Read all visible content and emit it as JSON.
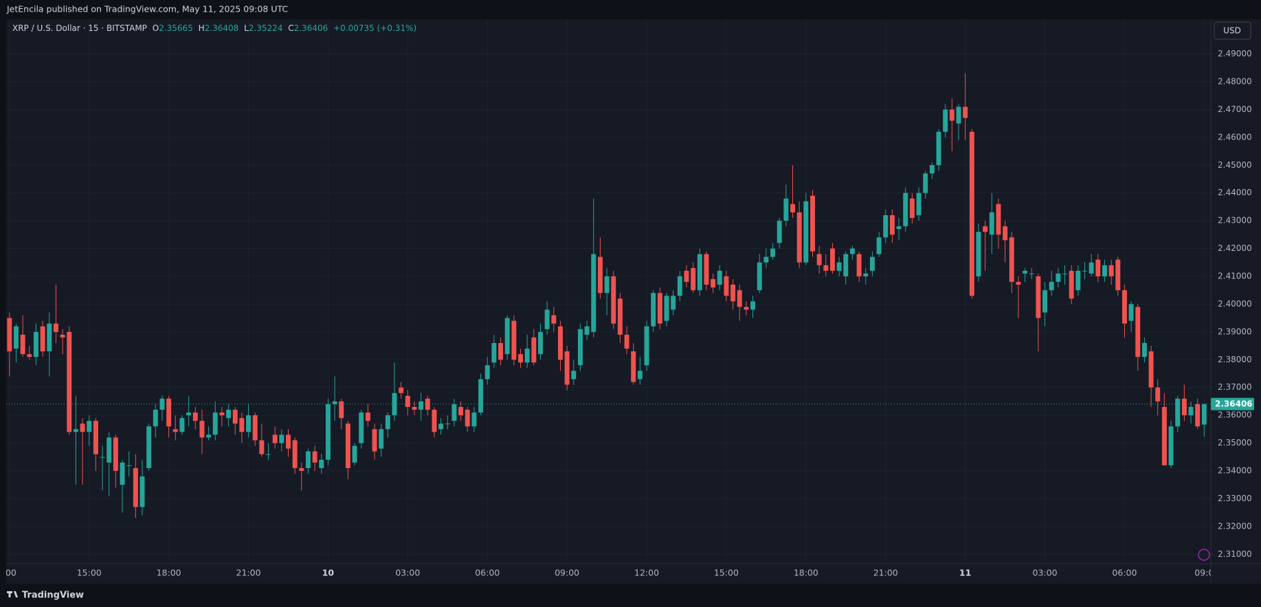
{
  "header": {
    "published": "JetEncila published on TradingView.com, May 11, 2025 09:08 UTC"
  },
  "footer": {
    "brand": "TradingView"
  },
  "currency_button": "USD",
  "legend": {
    "symbol": "XRP / U.S. Dollar · 15 · BITSTAMP",
    "open_label": "O",
    "open": 2.35665,
    "high_label": "H",
    "high": 2.36408,
    "low_label": "L",
    "low": 2.35224,
    "close_label": "C",
    "close": 2.36406,
    "change": "+0.00735 (+0.31%)"
  },
  "chart_data": {
    "type": "candlestick",
    "up_color": "#26a69a",
    "down_color": "#ef5350",
    "grid": true,
    "current_price": 2.36406,
    "xlim": [
      -0.5,
      181
    ],
    "xticks": [
      {
        "value": 0,
        "label": ":00"
      },
      {
        "value": 12,
        "label": "15:00"
      },
      {
        "value": 24,
        "label": "18:00"
      },
      {
        "value": 36,
        "label": "21:00"
      },
      {
        "value": 48,
        "label": "10"
      },
      {
        "value": 60,
        "label": "03:00"
      },
      {
        "value": 72,
        "label": "06:00"
      },
      {
        "value": 84,
        "label": "09:00"
      },
      {
        "value": 96,
        "label": "12:00"
      },
      {
        "value": 108,
        "label": "15:00"
      },
      {
        "value": 120,
        "label": "18:00"
      },
      {
        "value": 132,
        "label": "21:00"
      },
      {
        "value": 144,
        "label": "11"
      },
      {
        "value": 156,
        "label": "03:00"
      },
      {
        "value": 168,
        "label": "06:00"
      },
      {
        "value": 180,
        "label": "09:0"
      }
    ],
    "ylim": [
      2.3066,
      2.5025
    ],
    "yticks": [
      {
        "value": 2.31,
        "label": "2.31000"
      },
      {
        "value": 2.32,
        "label": "2.32000"
      },
      {
        "value": 2.33,
        "label": "2.33000"
      },
      {
        "value": 2.34,
        "label": "2.34000"
      },
      {
        "value": 2.35,
        "label": "2.35000"
      },
      {
        "value": 2.36,
        "label": "2.36000"
      },
      {
        "value": 2.37,
        "label": "2.37000"
      },
      {
        "value": 2.38,
        "label": "2.38000"
      },
      {
        "value": 2.39,
        "label": "2.39000"
      },
      {
        "value": 2.4,
        "label": "2.40000"
      },
      {
        "value": 2.41,
        "label": "2.41000"
      },
      {
        "value": 2.42,
        "label": "2.42000"
      },
      {
        "value": 2.43,
        "label": "2.43000"
      },
      {
        "value": 2.44,
        "label": "2.44000"
      },
      {
        "value": 2.45,
        "label": "2.45000"
      },
      {
        "value": 2.46,
        "label": "2.46000"
      },
      {
        "value": 2.47,
        "label": "2.47000"
      },
      {
        "value": 2.48,
        "label": "2.48000"
      },
      {
        "value": 2.49,
        "label": "2.49000"
      }
    ],
    "ohlc": [
      [
        2.395,
        2.397,
        2.374,
        2.383
      ],
      [
        2.384,
        2.393,
        2.379,
        2.392
      ],
      [
        2.389,
        2.396,
        2.381,
        2.382
      ],
      [
        2.382,
        2.385,
        2.38,
        2.381
      ],
      [
        2.381,
        2.393,
        2.378,
        2.39
      ],
      [
        2.392,
        2.394,
        2.381,
        2.383
      ],
      [
        2.383,
        2.397,
        2.374,
        2.393
      ],
      [
        2.393,
        2.407,
        2.386,
        2.39
      ],
      [
        2.389,
        2.391,
        2.382,
        2.388
      ],
      [
        2.39,
        2.392,
        2.353,
        2.354
      ],
      [
        2.354,
        2.367,
        2.335,
        2.355
      ],
      [
        2.357,
        2.359,
        2.335,
        2.354
      ],
      [
        2.354,
        2.36,
        2.349,
        2.358
      ],
      [
        2.358,
        2.359,
        2.34,
        2.346
      ],
      [
        2.345,
        2.349,
        2.333,
        2.345
      ],
      [
        2.343,
        2.354,
        2.331,
        2.352
      ],
      [
        2.352,
        2.353,
        2.334,
        2.34
      ],
      [
        2.335,
        2.344,
        2.325,
        2.343
      ],
      [
        2.342,
        2.347,
        2.338,
        2.342
      ],
      [
        2.341,
        2.346,
        2.323,
        2.327
      ],
      [
        2.327,
        2.344,
        2.324,
        2.338
      ],
      [
        2.341,
        2.357,
        2.34,
        2.356
      ],
      [
        2.356,
        2.364,
        2.352,
        2.362
      ],
      [
        2.362,
        2.367,
        2.358,
        2.366
      ],
      [
        2.366,
        2.367,
        2.352,
        2.356
      ],
      [
        2.355,
        2.36,
        2.351,
        2.354
      ],
      [
        2.354,
        2.36,
        2.353,
        2.359
      ],
      [
        2.36,
        2.367,
        2.356,
        2.361
      ],
      [
        2.361,
        2.363,
        2.355,
        2.358
      ],
      [
        2.358,
        2.362,
        2.346,
        2.352
      ],
      [
        2.352,
        2.356,
        2.351,
        2.353
      ],
      [
        2.353,
        2.365,
        2.351,
        2.361
      ],
      [
        2.361,
        2.363,
        2.356,
        2.36
      ],
      [
        2.359,
        2.364,
        2.356,
        2.362
      ],
      [
        2.362,
        2.363,
        2.353,
        2.357
      ],
      [
        2.359,
        2.361,
        2.35,
        2.354
      ],
      [
        2.354,
        2.364,
        2.352,
        2.36
      ],
      [
        2.36,
        2.361,
        2.349,
        2.351
      ],
      [
        2.351,
        2.357,
        2.345,
        2.346
      ],
      [
        2.346,
        2.35,
        2.344,
        2.346
      ],
      [
        2.353,
        2.356,
        2.348,
        2.35
      ],
      [
        2.35,
        2.355,
        2.347,
        2.353
      ],
      [
        2.353,
        2.355,
        2.345,
        2.348
      ],
      [
        2.351,
        2.352,
        2.339,
        2.341
      ],
      [
        2.341,
        2.343,
        2.333,
        2.34
      ],
      [
        2.341,
        2.348,
        2.339,
        2.347
      ],
      [
        2.347,
        2.349,
        2.34,
        2.343
      ],
      [
        2.341,
        2.346,
        2.339,
        2.344
      ],
      [
        2.344,
        2.366,
        2.342,
        2.364
      ],
      [
        2.364,
        2.374,
        2.358,
        2.365
      ],
      [
        2.365,
        2.366,
        2.355,
        2.359
      ],
      [
        2.357,
        2.358,
        2.337,
        2.341
      ],
      [
        2.343,
        2.35,
        2.342,
        2.349
      ],
      [
        2.35,
        2.362,
        2.348,
        2.361
      ],
      [
        2.361,
        2.364,
        2.356,
        2.358
      ],
      [
        2.355,
        2.357,
        2.344,
        2.347
      ],
      [
        2.348,
        2.357,
        2.345,
        2.355
      ],
      [
        2.355,
        2.361,
        2.352,
        2.36
      ],
      [
        2.36,
        2.379,
        2.358,
        2.368
      ],
      [
        2.37,
        2.372,
        2.366,
        2.368
      ],
      [
        2.367,
        2.369,
        2.36,
        2.363
      ],
      [
        2.363,
        2.365,
        2.36,
        2.362
      ],
      [
        2.362,
        2.368,
        2.358,
        2.365
      ],
      [
        2.366,
        2.367,
        2.36,
        2.362
      ],
      [
        2.362,
        2.363,
        2.352,
        2.354
      ],
      [
        2.355,
        2.359,
        2.353,
        2.357
      ],
      [
        2.357,
        2.36,
        2.355,
        2.357
      ],
      [
        2.358,
        2.366,
        2.356,
        2.364
      ],
      [
        2.363,
        2.365,
        2.358,
        2.36
      ],
      [
        2.362,
        2.363,
        2.354,
        2.356
      ],
      [
        2.356,
        2.363,
        2.354,
        2.361
      ],
      [
        2.361,
        2.375,
        2.36,
        2.373
      ],
      [
        2.373,
        2.381,
        2.371,
        2.378
      ],
      [
        2.379,
        2.389,
        2.377,
        2.386
      ],
      [
        2.386,
        2.388,
        2.378,
        2.38
      ],
      [
        2.382,
        2.396,
        2.38,
        2.395
      ],
      [
        2.394,
        2.396,
        2.378,
        2.38
      ],
      [
        2.382,
        2.384,
        2.377,
        2.379
      ],
      [
        2.379,
        2.389,
        2.377,
        2.384
      ],
      [
        2.388,
        2.391,
        2.378,
        2.379
      ],
      [
        2.382,
        2.393,
        2.38,
        2.39
      ],
      [
        2.391,
        2.401,
        2.389,
        2.398
      ],
      [
        2.396,
        2.399,
        2.39,
        2.393
      ],
      [
        2.392,
        2.394,
        2.376,
        2.38
      ],
      [
        2.383,
        2.385,
        2.369,
        2.371
      ],
      [
        2.373,
        2.38,
        2.371,
        2.376
      ],
      [
        2.378,
        2.393,
        2.376,
        2.391
      ],
      [
        2.389,
        2.394,
        2.387,
        2.392
      ],
      [
        2.39,
        2.438,
        2.388,
        2.418
      ],
      [
        2.417,
        2.424,
        2.402,
        2.404
      ],
      [
        2.404,
        2.413,
        2.396,
        2.41
      ],
      [
        2.41,
        2.412,
        2.391,
        2.393
      ],
      [
        2.402,
        2.404,
        2.386,
        2.389
      ],
      [
        2.389,
        2.392,
        2.382,
        2.384
      ],
      [
        2.383,
        2.386,
        2.371,
        2.372
      ],
      [
        2.373,
        2.381,
        2.371,
        2.376
      ],
      [
        2.378,
        2.394,
        2.376,
        2.392
      ],
      [
        2.392,
        2.405,
        2.39,
        2.404
      ],
      [
        2.404,
        2.406,
        2.391,
        2.393
      ],
      [
        2.394,
        2.404,
        2.392,
        2.403
      ],
      [
        2.398,
        2.405,
        2.396,
        2.403
      ],
      [
        2.403,
        2.412,
        2.401,
        2.41
      ],
      [
        2.412,
        2.414,
        2.406,
        2.408
      ],
      [
        2.413,
        2.415,
        2.404,
        2.405
      ],
      [
        2.405,
        2.42,
        2.403,
        2.418
      ],
      [
        2.418,
        2.419,
        2.405,
        2.407
      ],
      [
        2.409,
        2.411,
        2.404,
        2.406
      ],
      [
        2.407,
        2.414,
        2.405,
        2.412
      ],
      [
        2.41,
        2.412,
        2.401,
        2.403
      ],
      [
        2.407,
        2.409,
        2.398,
        2.401
      ],
      [
        2.405,
        2.407,
        2.394,
        2.399
      ],
      [
        2.399,
        2.401,
        2.396,
        2.398
      ],
      [
        2.398,
        2.403,
        2.395,
        2.401
      ],
      [
        2.405,
        2.418,
        2.404,
        2.415
      ],
      [
        2.415,
        2.42,
        2.413,
        2.417
      ],
      [
        2.417,
        2.422,
        2.416,
        2.42
      ],
      [
        2.422,
        2.431,
        2.42,
        2.43
      ],
      [
        2.43,
        2.443,
        2.428,
        2.438
      ],
      [
        2.436,
        2.45,
        2.431,
        2.433
      ],
      [
        2.433,
        2.437,
        2.413,
        2.415
      ],
      [
        2.415,
        2.44,
        2.414,
        2.437
      ],
      [
        2.439,
        2.441,
        2.417,
        2.419
      ],
      [
        2.418,
        2.421,
        2.411,
        2.414
      ],
      [
        2.414,
        2.418,
        2.41,
        2.412
      ],
      [
        2.42,
        2.422,
        2.411,
        2.412
      ],
      [
        2.412,
        2.417,
        2.41,
        2.415
      ],
      [
        2.41,
        2.419,
        2.407,
        2.418
      ],
      [
        2.418,
        2.421,
        2.416,
        2.42
      ],
      [
        2.418,
        2.419,
        2.408,
        2.41
      ],
      [
        2.41,
        2.413,
        2.407,
        2.411
      ],
      [
        2.412,
        2.419,
        2.41,
        2.417
      ],
      [
        2.418,
        2.426,
        2.417,
        2.424
      ],
      [
        2.424,
        2.434,
        2.422,
        2.432
      ],
      [
        2.432,
        2.434,
        2.422,
        2.425
      ],
      [
        2.427,
        2.431,
        2.423,
        2.428
      ],
      [
        2.428,
        2.442,
        2.426,
        2.44
      ],
      [
        2.438,
        2.44,
        2.429,
        2.431
      ],
      [
        2.432,
        2.442,
        2.43,
        2.44
      ],
      [
        2.44,
        2.448,
        2.438,
        2.447
      ],
      [
        2.447,
        2.451,
        2.445,
        2.45
      ],
      [
        2.45,
        2.463,
        2.448,
        2.462
      ],
      [
        2.462,
        2.472,
        2.46,
        2.47
      ],
      [
        2.47,
        2.474,
        2.455,
        2.466
      ],
      [
        2.465,
        2.472,
        2.459,
        2.471
      ],
      [
        2.471,
        2.483,
        2.459,
        2.467
      ],
      [
        2.462,
        2.463,
        2.402,
        2.403
      ],
      [
        2.41,
        2.429,
        2.408,
        2.426
      ],
      [
        2.428,
        2.43,
        2.412,
        2.426
      ],
      [
        2.425,
        2.44,
        2.418,
        2.433
      ],
      [
        2.436,
        2.438,
        2.42,
        2.425
      ],
      [
        2.428,
        2.43,
        2.415,
        2.423
      ],
      [
        2.424,
        2.426,
        2.404,
        2.408
      ],
      [
        2.408,
        2.41,
        2.395,
        2.407
      ],
      [
        2.411,
        2.413,
        2.408,
        2.412
      ],
      [
        2.411,
        2.413,
        2.409,
        2.411
      ],
      [
        2.41,
        2.411,
        2.383,
        2.395
      ],
      [
        2.397,
        2.408,
        2.392,
        2.405
      ],
      [
        2.405,
        2.412,
        2.403,
        2.408
      ],
      [
        2.408,
        2.413,
        2.406,
        2.411
      ],
      [
        2.411,
        2.414,
        2.407,
        2.411
      ],
      [
        2.412,
        2.414,
        2.4,
        2.402
      ],
      [
        2.405,
        2.414,
        2.403,
        2.412
      ],
      [
        2.412,
        2.415,
        2.409,
        2.412
      ],
      [
        2.411,
        2.418,
        2.41,
        2.415
      ],
      [
        2.416,
        2.418,
        2.408,
        2.41
      ],
      [
        2.41,
        2.416,
        2.408,
        2.414
      ],
      [
        2.414,
        2.416,
        2.407,
        2.41
      ],
      [
        2.416,
        2.417,
        2.403,
        2.405
      ],
      [
        2.405,
        2.407,
        2.388,
        2.393
      ],
      [
        2.394,
        2.401,
        2.39,
        2.4
      ],
      [
        2.399,
        2.4,
        2.376,
        2.381
      ],
      [
        2.381,
        2.388,
        2.379,
        2.386
      ],
      [
        2.383,
        2.385,
        2.363,
        2.37
      ],
      [
        2.37,
        2.373,
        2.36,
        2.365
      ],
      [
        2.363,
        2.368,
        2.342,
        2.342
      ],
      [
        2.342,
        2.358,
        2.341,
        2.356
      ],
      [
        2.356,
        2.367,
        2.354,
        2.366
      ],
      [
        2.366,
        2.371,
        2.358,
        2.36
      ],
      [
        2.36,
        2.365,
        2.357,
        2.363
      ],
      [
        2.364,
        2.366,
        2.355,
        2.356
      ],
      [
        2.35665,
        2.36408,
        2.35224,
        2.36406
      ]
    ]
  }
}
